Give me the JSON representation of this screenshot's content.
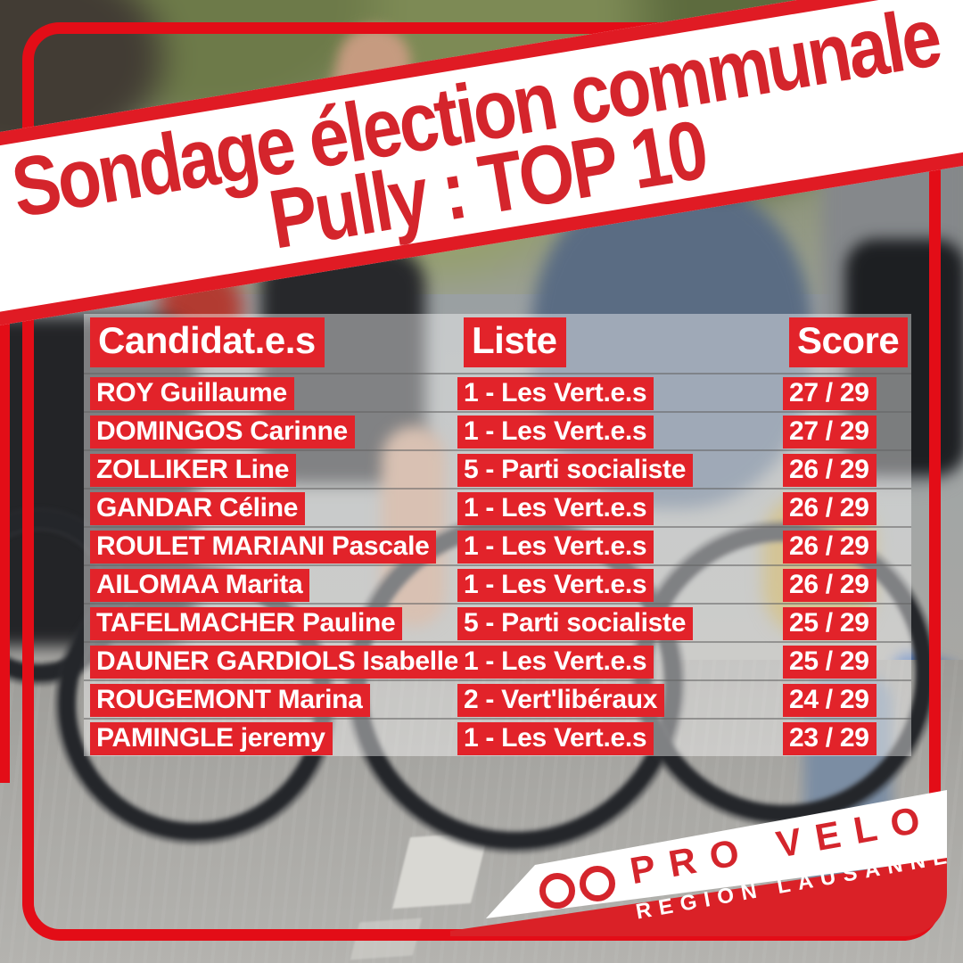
{
  "banner": {
    "line1": "Sondage élection communale",
    "line2": "Pully : TOP 10"
  },
  "chart_data": {
    "type": "table",
    "title": "Sondage élection communale Pully : TOP 10",
    "columns": [
      "Candidat.e.s",
      "Liste",
      "Score"
    ],
    "rows": [
      [
        "ROY Guillaume",
        "1 - Les Vert.e.s",
        "27 / 29"
      ],
      [
        "DOMINGOS Carinne",
        "1 - Les Vert.e.s",
        "27 / 29"
      ],
      [
        "ZOLLIKER Line",
        "5 - Parti socialiste",
        "26 / 29"
      ],
      [
        "GANDAR Céline",
        "1 - Les Vert.e.s",
        "26 / 29"
      ],
      [
        "ROULET MARIANI Pascale",
        "1 - Les Vert.e.s",
        "26 / 29"
      ],
      [
        "AILOMAA Marita",
        "1 - Les Vert.e.s",
        "26 / 29"
      ],
      [
        "TAFELMACHER Pauline",
        "5 - Parti socialiste",
        "25 / 29"
      ],
      [
        "DAUNER GARDIOLS Isabelle",
        "1 - Les Vert.e.s",
        "25 / 29"
      ],
      [
        "ROUGEMONT Marina",
        "2 - Vert'libéraux",
        "24 / 29"
      ],
      [
        "PAMINGLE jeremy",
        "1 - Les Vert.e.s",
        "23 / 29"
      ]
    ]
  },
  "logo": {
    "brand": "PRO VELO",
    "region": "REGION LAUSANNE",
    "icon": "two-wheels-icon"
  },
  "colors": {
    "brand_red": "#e2232a",
    "frame_red": "#e30d17",
    "banner_text_red": "#d4252c",
    "chip_text_white": "#ffffff",
    "row_divider_gray": "#646464",
    "table_overlay": "rgba(255,255,255,0.42)"
  }
}
